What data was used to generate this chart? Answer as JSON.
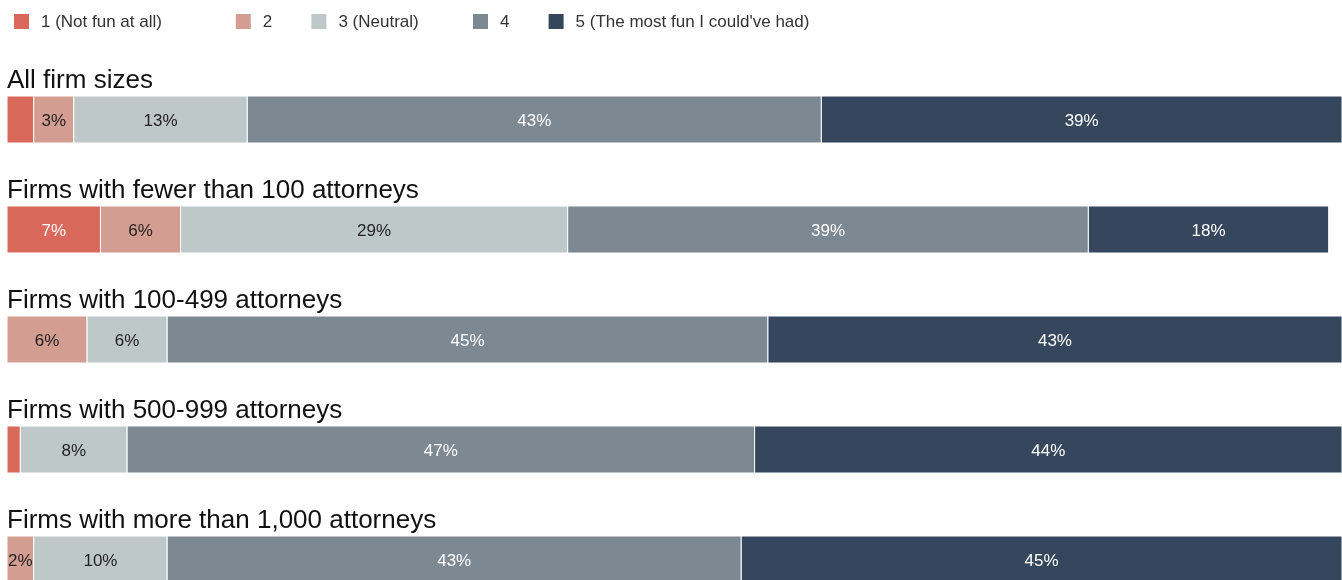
{
  "chart_data": {
    "type": "bar",
    "orientation": "horizontal",
    "stacked": true,
    "categories": [
      "All firm sizes",
      "Firms with fewer than 100 attorneys",
      "Firms with 100-499 attorneys",
      "Firms with 500-999 attorneys",
      "Firms with more than 1,000 attorneys"
    ],
    "series": [
      {
        "name": "1 (Not fun at all)",
        "color": "#d9695a",
        "values": [
          2,
          7,
          null,
          1,
          null
        ],
        "value_labels": [
          null,
          "7%",
          null,
          null,
          null
        ]
      },
      {
        "name": "2",
        "color": "#d49d92",
        "values": [
          3,
          6,
          6,
          null,
          2
        ],
        "value_labels": [
          "3%",
          "6%",
          "6%",
          null,
          "2%"
        ]
      },
      {
        "name": "3 (Neutral)",
        "color": "#bfc8c9",
        "values": [
          13,
          29,
          6,
          8,
          10
        ],
        "value_labels": [
          "13%",
          "29%",
          "6%",
          "8%",
          "10%"
        ]
      },
      {
        "name": "4",
        "color": "#7c8992",
        "values": [
          43,
          39,
          45,
          47,
          43
        ],
        "value_labels": [
          "43%",
          "39%",
          "45%",
          "47%",
          "43%"
        ]
      },
      {
        "name": "5 (The most fun I could've had)",
        "color": "#36465c",
        "values": [
          39,
          18,
          43,
          44,
          45
        ],
        "value_labels": [
          "39%",
          "18%",
          "43%",
          "44%",
          "45%"
        ]
      }
    ],
    "xlim": [
      0,
      100
    ],
    "tick_labels": false,
    "legend": "top left",
    "grid": false
  }
}
